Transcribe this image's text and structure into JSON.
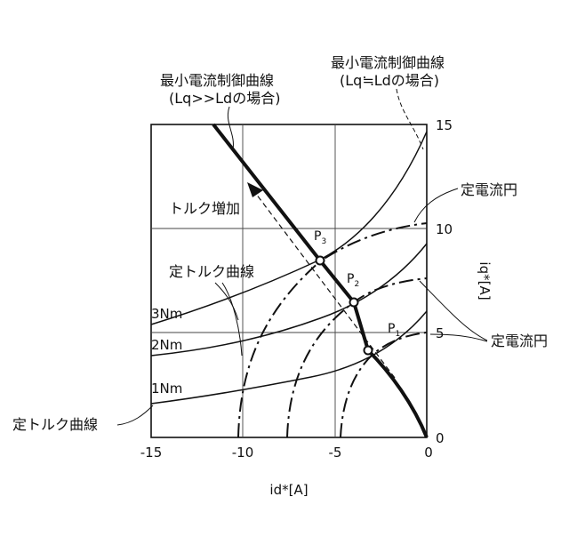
{
  "labels": {
    "min_current_lq_gg_ld_title": "最小電流制御曲線",
    "min_current_lq_gg_ld_cond": "(Lq>>Ldの場合)",
    "min_current_lq_eq_ld_title": "最小電流制御曲線",
    "min_current_lq_eq_ld_cond": "(Lq≒Ldの場合)",
    "torque_increase": "トルク増加",
    "constant_current_circle_top": "定電流円",
    "constant_current_circle_right": "定電流円",
    "constant_torque_curve_mid": "定トルク曲線",
    "constant_torque_curve_bottom": "定トルク曲線",
    "torque_3nm": "3Nm",
    "torque_2nm": "2Nm",
    "torque_1nm": "1Nm",
    "p1_letter": "P",
    "p1_sub": "1",
    "p2_letter": "P",
    "p2_sub": "2",
    "p3_letter": "P",
    "p3_sub": "3"
  },
  "axes": {
    "x_label": "id*[A]",
    "y_label": "iq*[A]",
    "x_ticks": [
      "-15",
      "-10",
      "-5",
      "0"
    ],
    "y_ticks": [
      "15",
      "10",
      "5",
      "0"
    ]
  },
  "colors": {
    "line": "#111111",
    "grid": "#444444",
    "background": "#ffffff"
  }
}
